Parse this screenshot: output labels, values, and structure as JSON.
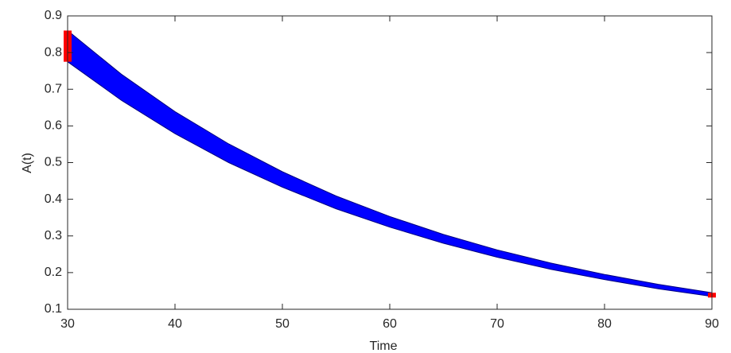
{
  "chart_data": {
    "type": "band",
    "xlabel": "Time",
    "ylabel": "A(t)",
    "x": [
      30,
      35,
      40,
      45,
      50,
      55,
      60,
      65,
      70,
      75,
      80,
      85,
      90
    ],
    "upper": [
      0.86,
      0.741,
      0.639,
      0.551,
      0.475,
      0.409,
      0.353,
      0.304,
      0.262,
      0.226,
      0.195,
      0.168,
      0.145
    ],
    "lower": [
      0.775,
      0.67,
      0.579,
      0.5,
      0.433,
      0.374,
      0.324,
      0.28,
      0.242,
      0.209,
      0.181,
      0.156,
      0.135
    ],
    "color": "#0000ff",
    "edge_color": "#000080",
    "end_color": "#ff0000",
    "xlim": [
      30,
      90
    ],
    "xticks": [
      30,
      40,
      50,
      60,
      70,
      80,
      90
    ],
    "ylim": [
      0.1,
      0.9
    ],
    "yticks": [
      0.1,
      0.2,
      0.3,
      0.4,
      0.5,
      0.6,
      0.7,
      0.8,
      0.9
    ]
  }
}
